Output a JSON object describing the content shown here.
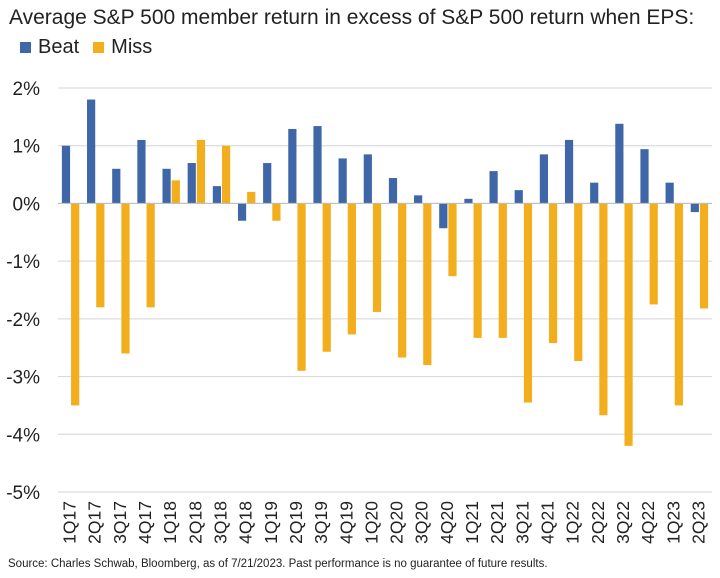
{
  "chart_data": {
    "type": "bar",
    "title": "Average S&P 500 member return in excess of S&P 500 return when EPS:",
    "categories": [
      "1Q17",
      "2Q17",
      "3Q17",
      "4Q17",
      "1Q18",
      "2Q18",
      "3Q18",
      "4Q18",
      "1Q19",
      "2Q19",
      "3Q19",
      "4Q19",
      "1Q20",
      "2Q20",
      "3Q20",
      "4Q20",
      "1Q21",
      "2Q21",
      "3Q21",
      "4Q21",
      "1Q22",
      "2Q22",
      "3Q22",
      "4Q22",
      "1Q23",
      "2Q23"
    ],
    "series": [
      {
        "name": "Beat",
        "color": "#3f67a8",
        "values": [
          1.0,
          1.8,
          0.6,
          1.1,
          0.6,
          0.7,
          0.3,
          -0.3,
          0.7,
          1.29,
          1.34,
          0.78,
          0.85,
          0.44,
          0.14,
          -0.43,
          0.08,
          0.56,
          0.23,
          0.85,
          1.1,
          0.36,
          1.38,
          0.94,
          0.36,
          -0.15
        ]
      },
      {
        "name": "Miss",
        "color": "#f2ae1c",
        "values": [
          -3.5,
          -1.8,
          -2.6,
          -1.8,
          0.4,
          1.1,
          1.0,
          0.2,
          -0.3,
          -2.9,
          -2.57,
          -2.27,
          -1.88,
          -2.67,
          -2.8,
          -1.26,
          -2.33,
          -2.33,
          -3.45,
          -2.42,
          -2.73,
          -3.67,
          -4.2,
          -1.75,
          -3.5,
          -1.82
        ]
      }
    ],
    "ylim": [
      -5,
      2
    ],
    "yticks": [
      2,
      1,
      0,
      -1,
      -2,
      -3,
      -4,
      -5
    ],
    "ytick_labels": [
      "2%",
      "1%",
      "0%",
      "-1%",
      "-2%",
      "-3%",
      "-4%",
      "-5%"
    ],
    "xlabel": "",
    "ylabel": "",
    "grid": true,
    "legend_position": "top-left"
  },
  "source_note": "Source: Charles Schwab, Bloomberg, as of 7/21/2023. Past performance is no guarantee of future results."
}
